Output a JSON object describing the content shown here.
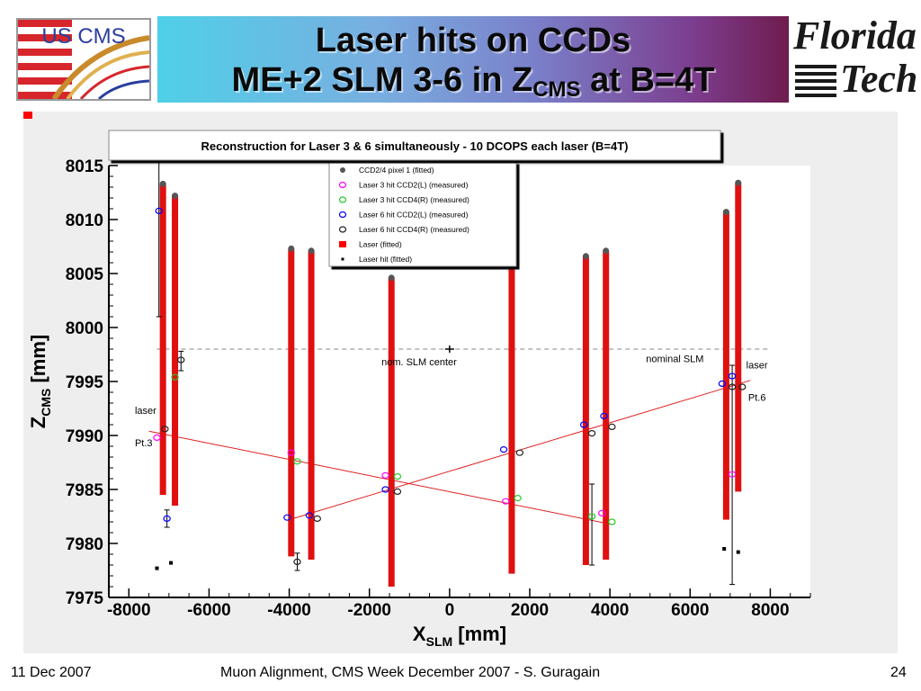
{
  "header": {
    "logo_left_text": "US CMS",
    "title_line1": "Laser hits on CCDs",
    "title_line2_prefix": "ME+2 SLM 3-6 in Z",
    "title_line2_sub": "CMS",
    "title_line2_suffix": " at B=4T",
    "logo_right_word1": "Florida",
    "logo_right_word2": "Tech"
  },
  "footer": {
    "date": "11 Dec 2007",
    "center": "Muon Alignment, CMS Week December 2007  - S. Guragain",
    "page": "24"
  },
  "chart_data": {
    "type": "scatter",
    "title": "Reconstruction for Laser 3 & 6 simultaneously - 10 DCOPS each laser (B=4T)",
    "xlabel": "X",
    "xlabel_sub": "SLM",
    "xlabel_unit": " [mm]",
    "ylabel": "Z",
    "ylabel_sub": "CMS",
    "ylabel_unit": " [mm]",
    "xlim": [
      -8500,
      9000
    ],
    "ylim": [
      7975,
      8015
    ],
    "xticks": [
      -8000,
      -6000,
      -4000,
      -2000,
      0,
      2000,
      4000,
      6000,
      8000
    ],
    "yticks": [
      7975,
      7980,
      7985,
      7990,
      7995,
      8000,
      8005,
      8010,
      8015
    ],
    "legend": [
      {
        "label": "CCD2/4 pixel 1 (fitted)",
        "marker": "filled-circle",
        "color": "#555555"
      },
      {
        "label": "Laser 3 hit CCD2(L) (measured)",
        "marker": "open-circle",
        "color": "#ff00ff"
      },
      {
        "label": "Laser 3 hit CCD4(R) (measured)",
        "marker": "open-circle",
        "color": "#22cc22"
      },
      {
        "label": "Laser 6 hit CCD2(L) (measured)",
        "marker": "open-circle",
        "color": "#0000ff"
      },
      {
        "label": "Laser 6 hit CCD4(R) (measured)",
        "marker": "open-circle",
        "color": "#222222"
      },
      {
        "label": "Laser (fitted)",
        "marker": "filled-square",
        "color": "#ff0000"
      },
      {
        "label": "Laser hit (fitted)",
        "marker": "small-square",
        "color": "#000000"
      }
    ],
    "dcops_bars": [
      {
        "x": -7150,
        "bottom": 7984.5,
        "top": 8013.3
      },
      {
        "x": -6850,
        "bottom": 7983.5,
        "top": 8012.2
      },
      {
        "x": -3950,
        "bottom": 7978.8,
        "top": 8007.3
      },
      {
        "x": -3450,
        "bottom": 7978.5,
        "top": 8007.1
      },
      {
        "x": -1450,
        "bottom": 7976.0,
        "top": 8004.6
      },
      {
        "x": 1550,
        "bottom": 7977.2,
        "top": 8005.8
      },
      {
        "x": 3400,
        "bottom": 7978.0,
        "top": 8006.6
      },
      {
        "x": 3900,
        "bottom": 7978.5,
        "top": 8007.1
      },
      {
        "x": 6900,
        "bottom": 7982.2,
        "top": 8010.7
      },
      {
        "x": 7200,
        "bottom": 7984.8,
        "top": 8013.4
      }
    ],
    "laser_lines": [
      {
        "name": "Laser 3",
        "from": [
          -7500,
          7990.4
        ],
        "to": [
          4000,
          7981.8
        ]
      },
      {
        "name": "Laser 6",
        "from": [
          -4000,
          7982.2
        ],
        "to": [
          7500,
          7995.1
        ]
      }
    ],
    "lasers_fitted": [
      {
        "x": -7550,
        "y": 7990.4
      },
      {
        "x": 7450,
        "y": 7995.1
      }
    ],
    "laser_3_ccd2": [
      [
        -7300,
        7989.8
      ],
      [
        -3950,
        7988.4
      ],
      [
        -1600,
        7986.3
      ],
      [
        1400,
        7983.9
      ],
      [
        3800,
        7982.8
      ],
      [
        7050,
        7986.4
      ]
    ],
    "laser_3_ccd4": [
      [
        -6850,
        7995.4
      ],
      [
        -3800,
        7987.6
      ],
      [
        -1300,
        7986.2
      ],
      [
        1700,
        7984.2
      ],
      [
        3550,
        7982.5
      ],
      [
        4050,
        7982.0
      ]
    ],
    "laser_6_ccd2": [
      [
        -7250,
        8010.8
      ],
      [
        -7050,
        7982.3
      ],
      [
        -4050,
        7982.4
      ],
      [
        -3500,
        7982.6
      ],
      [
        -1600,
        7985.0
      ],
      [
        1350,
        7988.7
      ],
      [
        3350,
        7991.0
      ],
      [
        3850,
        7991.8
      ],
      [
        6800,
        7994.8
      ],
      [
        7050,
        7995.5
      ]
    ],
    "laser_6_ccd4": [
      [
        -7100,
        7990.6
      ],
      [
        -6700,
        7997.0
      ],
      [
        -3800,
        7978.3
      ],
      [
        -3300,
        7982.3
      ],
      [
        -1300,
        7984.8
      ],
      [
        1750,
        7988.4
      ],
      [
        3550,
        7990.2
      ],
      [
        4050,
        7990.8
      ],
      [
        7050,
        7994.5
      ],
      [
        7300,
        7994.5
      ]
    ],
    "error_bars": [
      {
        "x": -7250,
        "y": 8010.8,
        "low": 8001.0,
        "high": 8016.0
      },
      {
        "x": -6700,
        "y": 7997.0,
        "low": 7996.0,
        "high": 7997.8
      },
      {
        "x": -7050,
        "y": 7982.3,
        "low": 7981.5,
        "high": 7983.1
      },
      {
        "x": -3800,
        "y": 7978.3,
        "low": 7977.5,
        "high": 7979.1
      },
      {
        "x": 3550,
        "y": 7982.5,
        "low": 7978.0,
        "high": 7985.5
      },
      {
        "x": 7050,
        "y": 7986.4,
        "low": 7976.2,
        "high": 7996.5
      }
    ],
    "laser_hits_fitted": [
      [
        -7300,
        7977.7
      ],
      [
        -6950,
        7978.2
      ],
      [
        6850,
        7979.5
      ],
      [
        7200,
        7979.2
      ]
    ],
    "nominal_slm_center": {
      "x": 0,
      "y": 7998.0
    },
    "nominal_line_y": 7998.0,
    "annotations": [
      {
        "text": "laser",
        "x": -7850,
        "y": 7992.0
      },
      {
        "text": "Pt.3",
        "x": -7850,
        "y": 7989.0
      },
      {
        "text": "nom. SLM center",
        "x": -1700,
        "y": 7996.5
      },
      {
        "text": "nominal SLM",
        "x": 4900,
        "y": 7996.8
      },
      {
        "text": "laser",
        "x": 7400,
        "y": 7996.2
      },
      {
        "text": "Pt.6",
        "x": 7450,
        "y": 7993.2
      }
    ],
    "grid": false,
    "legend_placement": "top-center"
  }
}
